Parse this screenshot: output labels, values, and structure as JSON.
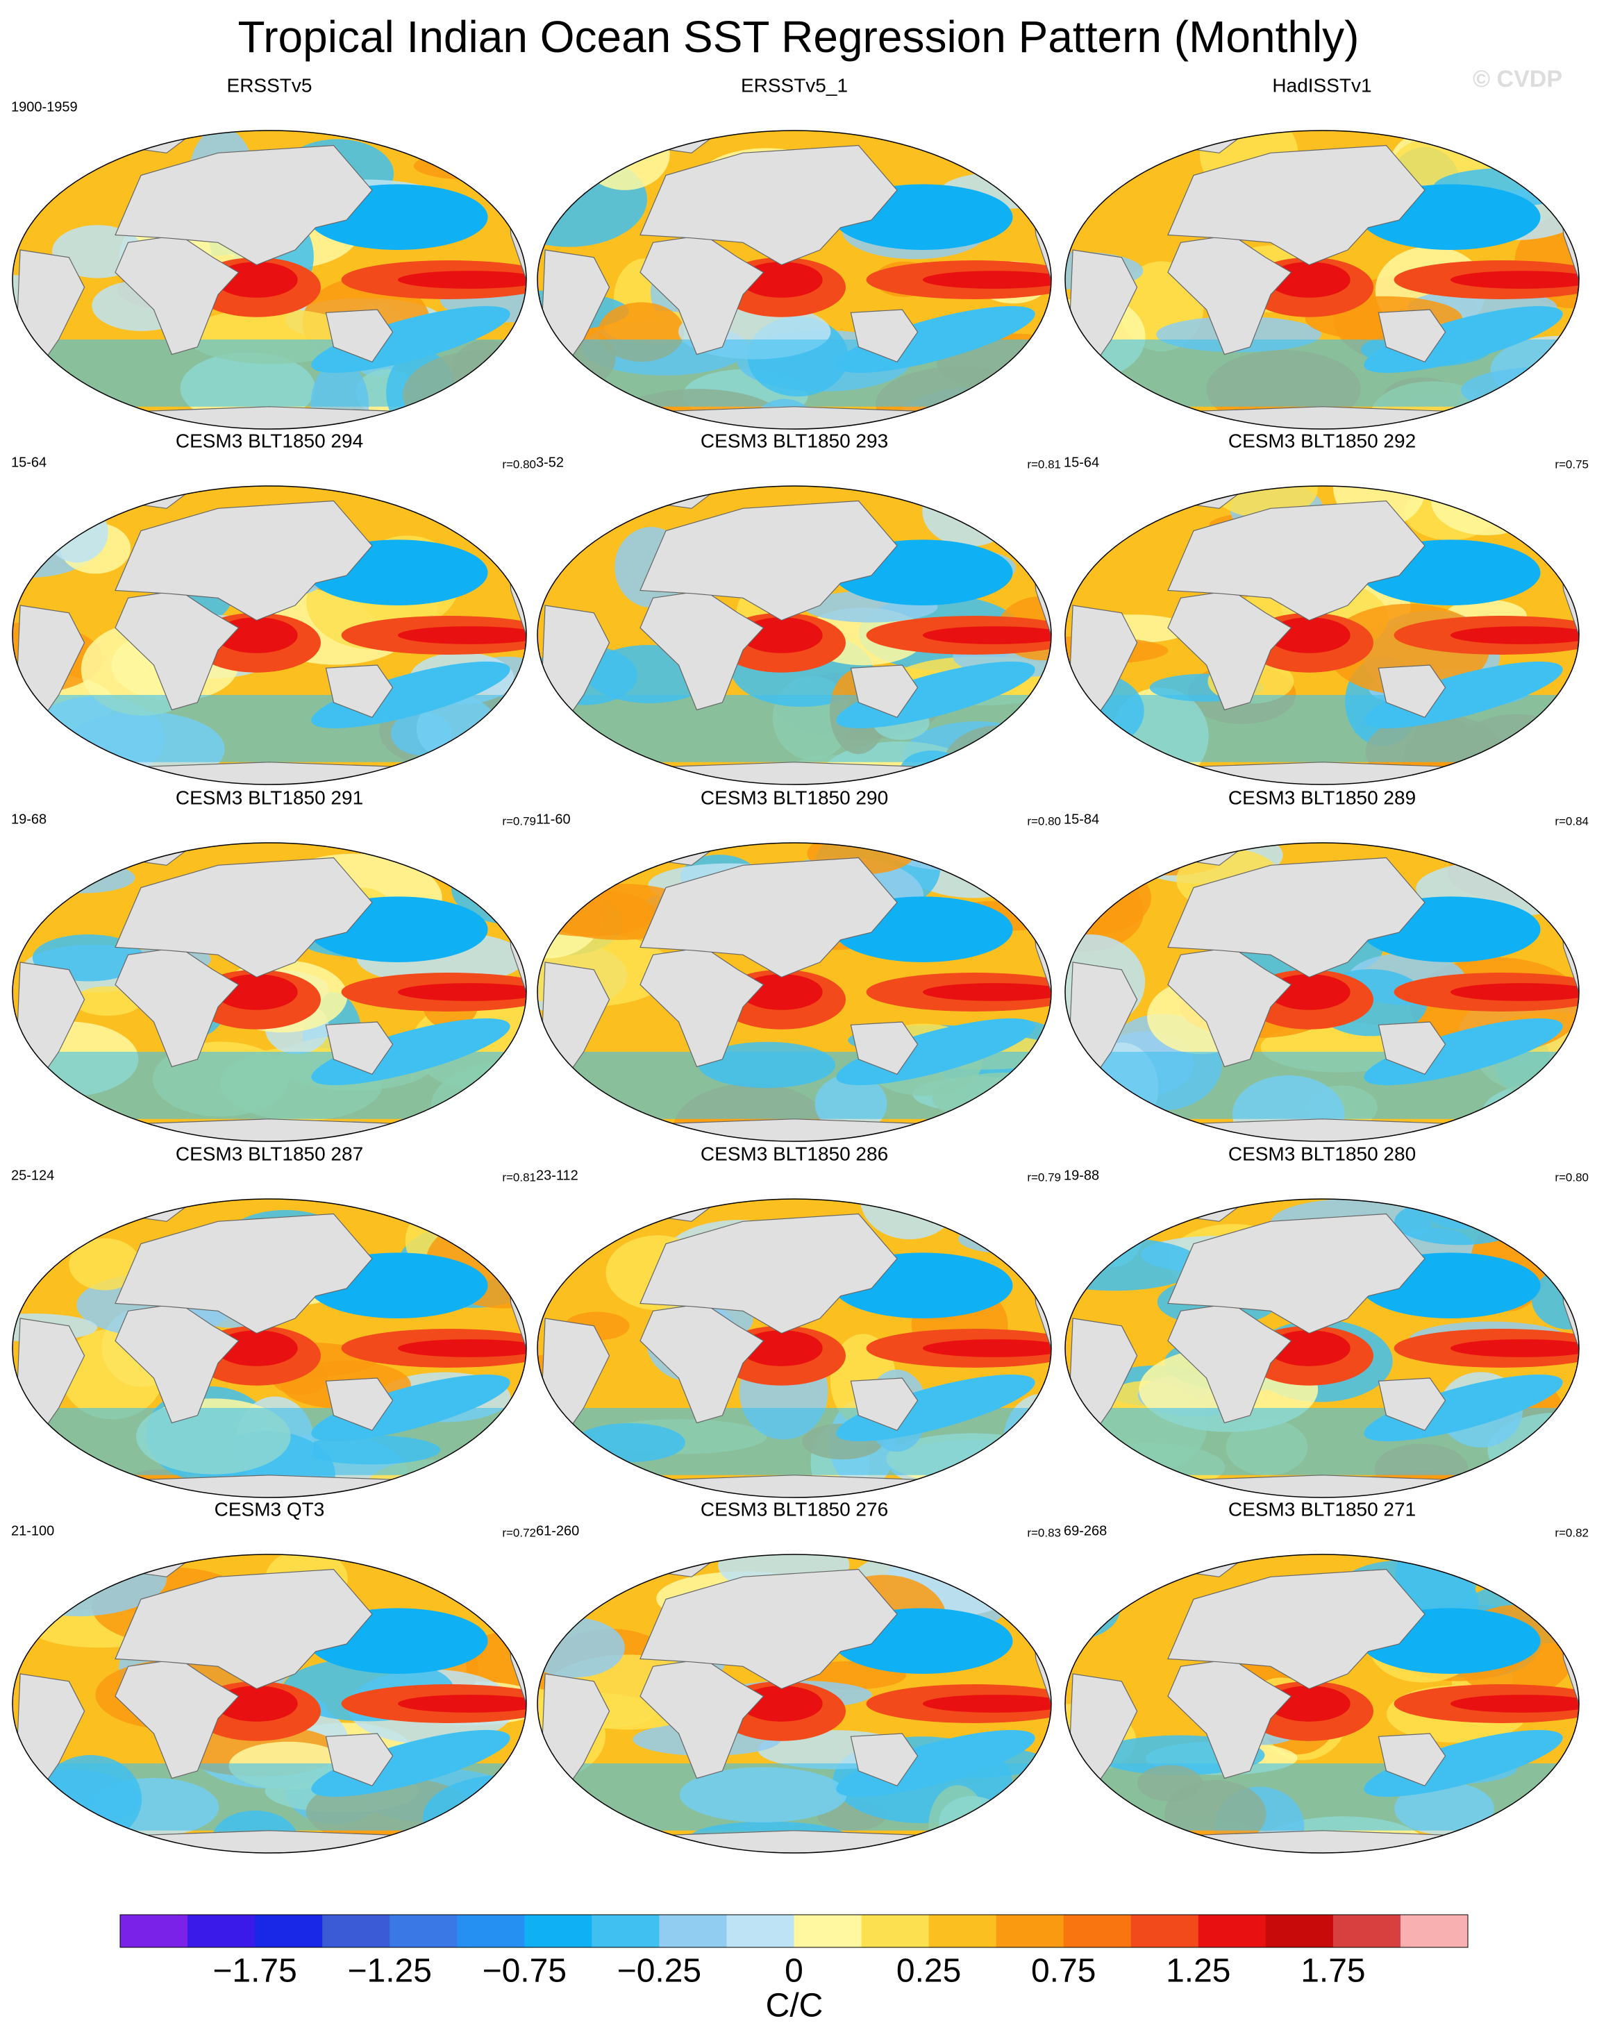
{
  "header": {
    "title": "Tropical Indian Ocean SST Regression Pattern (Monthly)",
    "watermark": "© CVDP"
  },
  "panels": [
    {
      "title": "ERSSTv5",
      "period": "1900-1959"
    },
    {
      "title": "ERSSTv5_1"
    },
    {
      "title": "HadISSTv1"
    },
    {
      "title": "CESM3 BLT1850 294",
      "period": "15-64",
      "r": "r=0.80"
    },
    {
      "title": "CESM3 BLT1850 293",
      "period": "3-52",
      "r": "r=0.81"
    },
    {
      "title": "CESM3 BLT1850 292",
      "period": "15-64",
      "r": "r=0.75"
    },
    {
      "title": "CESM3 BLT1850 291",
      "period": "19-68",
      "r": "r=0.79"
    },
    {
      "title": "CESM3 BLT1850 290",
      "period": "11-60",
      "r": "r=0.80"
    },
    {
      "title": "CESM3 BLT1850 289",
      "period": "15-84",
      "r": "r=0.84"
    },
    {
      "title": "CESM3 BLT1850 287",
      "period": "25-124",
      "r": "r=0.81"
    },
    {
      "title": "CESM3 BLT1850 286",
      "period": "23-112",
      "r": "r=0.79"
    },
    {
      "title": "CESM3 BLT1850 280",
      "period": "19-88",
      "r": "r=0.80"
    },
    {
      "title": "CESM3 QT3",
      "period": "21-100",
      "r": "r=0.72"
    },
    {
      "title": "CESM3 BLT1850 276",
      "period": "61-260",
      "r": "r=0.83"
    },
    {
      "title": "CESM3 BLT1850 271",
      "period": "69-268",
      "r": "r=0.82"
    }
  ],
  "colorbar": {
    "colors": [
      "#7a22e8",
      "#3a1ae8",
      "#1828e6",
      "#3a5ad6",
      "#3a78e6",
      "#2690f2",
      "#10b0f5",
      "#40c0f0",
      "#90cdf0",
      "#bde3f5",
      "#fff8a0",
      "#fde050",
      "#fbbf20",
      "#f99a10",
      "#f97510",
      "#f24a1a",
      "#e81010",
      "#c80a0a",
      "#d84040",
      "#f8b0b0"
    ],
    "labels": [
      "−1.75",
      "−1.25",
      "−0.75",
      "−0.25",
      "0",
      "0.25",
      "0.75",
      "1.25",
      "1.75"
    ],
    "units": "C/C"
  }
}
